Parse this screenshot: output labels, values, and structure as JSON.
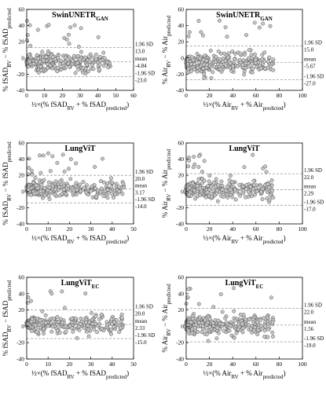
{
  "chart_data": [
    {
      "type": "scatter",
      "title": "SwinUNETR_GAN",
      "title_main": "SwinUNETR",
      "title_sub": "GAN",
      "ylabel": "% fSAD_RV − % fSAD_predicted",
      "xlabel": "½×(% fSAD_RV + % fSAD_predicted)",
      "xlim": [
        0,
        60
      ],
      "ylim": [
        -40,
        60
      ],
      "xticks": [
        0,
        10,
        20,
        30,
        40,
        50,
        60
      ],
      "yticks": [
        -40,
        -20,
        0,
        20,
        40,
        60
      ],
      "xtick_labels": [
        "0",
        "10",
        "20",
        "30",
        "40",
        "50",
        "60"
      ],
      "ytick_labels": [
        "-40",
        "-20",
        "0",
        "20",
        "40",
        "60"
      ],
      "grid": false,
      "lines": {
        "upper": 13.0,
        "mean": -4.84,
        "lower": -23.0
      },
      "line_labels": {
        "upper_name": "1.96 SD",
        "upper_value": "13.0",
        "mean_name": "mean",
        "mean_value": "-4.84",
        "lower_name": "-1.96 SD",
        "lower_value": "-23.0"
      },
      "n_points": 330,
      "x_max": 47
    },
    {
      "type": "scatter",
      "title": "SwinUNETR_GAN",
      "title_main": "SwinUNETR",
      "title_sub": "GAN",
      "ylabel": "% Air_RV − % Air_predicted",
      "xlabel": "½×(% Air_RV + % Air_predicted)",
      "xlim": [
        0,
        100
      ],
      "ylim": [
        -40,
        60
      ],
      "xticks": [
        0,
        20,
        40,
        60,
        80,
        100
      ],
      "yticks": [
        -40,
        -20,
        0,
        20,
        40,
        60
      ],
      "xtick_labels": [
        "0",
        "20",
        "40",
        "60",
        "80",
        "100"
      ],
      "ytick_labels": [
        "-40",
        "-20",
        "0",
        "20",
        "40",
        "60"
      ],
      "grid": false,
      "lines": {
        "upper": 15.0,
        "mean": -5.67,
        "lower": -27.0
      },
      "line_labels": {
        "upper_name": "1.96 SD",
        "upper_value": "15.0",
        "mean_name": "mean",
        "mean_value": "-5.67",
        "lower_name": "-1.96 SD",
        "lower_value": "-27.0"
      },
      "n_points": 330,
      "x_max": 75
    },
    {
      "type": "scatter",
      "title": "LungViT",
      "title_main": "LungViT",
      "title_sub": "",
      "ylabel": "% fSAD_RV − % fSAD_predicted",
      "xlabel": "½×(% fSAD_RV + % fSAD_predicted)",
      "xlim": [
        0,
        50
      ],
      "ylim": [
        -40,
        60
      ],
      "xticks": [
        0,
        10,
        20,
        30,
        40,
        50
      ],
      "yticks": [
        -40,
        -20,
        0,
        20,
        40,
        60
      ],
      "xtick_labels": [
        "0",
        "10",
        "20",
        "30",
        "40",
        "50"
      ],
      "ytick_labels": [
        "-40",
        "-20",
        "0",
        "20",
        "40",
        "60"
      ],
      "grid": false,
      "lines": {
        "upper": 20.0,
        "mean": 3.17,
        "lower": -14.0
      },
      "line_labels": {
        "upper_name": "1.96 SD",
        "upper_value": "20.0",
        "mean_name": "mean",
        "mean_value": "3.17",
        "lower_name": "-1.96 SD",
        "lower_value": "-14.0"
      },
      "n_points": 330,
      "x_max": 46
    },
    {
      "type": "scatter",
      "title": "LungViT",
      "title_main": "LungViT",
      "title_sub": "",
      "ylabel": "% Air_RV − % Air_predicted",
      "xlabel": "½×(% Air_RV + % Air_predicted)",
      "xlim": [
        0,
        100
      ],
      "ylim": [
        -40,
        60
      ],
      "xticks": [
        0,
        20,
        40,
        60,
        80,
        100
      ],
      "yticks": [
        -40,
        -20,
        0,
        20,
        40,
        60
      ],
      "xtick_labels": [
        "0",
        "20",
        "40",
        "60",
        "80",
        "100"
      ],
      "ytick_labels": [
        "-40",
        "-20",
        "0",
        "20",
        "40",
        "60"
      ],
      "grid": false,
      "lines": {
        "upper": 22.0,
        "mean": 2.29,
        "lower": -17.0
      },
      "line_labels": {
        "upper_name": "1.96 SD",
        "upper_value": "22.0",
        "mean_name": "mean",
        "mean_value": "2.29",
        "lower_name": "-1.96 SD",
        "lower_value": "-17.0"
      },
      "n_points": 330,
      "x_max": 75
    },
    {
      "type": "scatter",
      "title": "LungViT_EC",
      "title_main": "LungViT",
      "title_sub": "EC",
      "ylabel": "% fSAD_RV − fSAD_predicted",
      "xlabel": "½×(% fSAD_RV + % fSAD_predicted)",
      "xlim": [
        0,
        50
      ],
      "ylim": [
        -40,
        60
      ],
      "xticks": [
        0,
        10,
        20,
        30,
        40,
        50
      ],
      "yticks": [
        -40,
        -20,
        0,
        20,
        40,
        60
      ],
      "xtick_labels": [
        "0",
        "10",
        "20",
        "30",
        "40",
        "50"
      ],
      "ytick_labels": [
        "-40",
        "-20",
        "0",
        "20",
        "40",
        "60"
      ],
      "grid": false,
      "lines": {
        "upper": 20.0,
        "mean": 2.33,
        "lower": -15.0
      },
      "line_labels": {
        "upper_name": "1.96 SD",
        "upper_value": "20.0",
        "mean_name": "mean",
        "mean_value": "2.33",
        "lower_name": "-1.96 SD",
        "lower_value": "-15.0"
      },
      "n_points": 330,
      "x_max": 45
    },
    {
      "type": "scatter",
      "title": "LungViT_EC",
      "title_main": "LungViT",
      "title_sub": "EC",
      "ylabel": "% Air_RV − % Air_predicted",
      "xlabel": "½×(% Air_RV + % Air_predicted)",
      "xlim": [
        0,
        100
      ],
      "ylim": [
        -40,
        60
      ],
      "xticks": [
        0,
        20,
        40,
        60,
        80,
        100
      ],
      "yticks": [
        -40,
        -20,
        0,
        20,
        40,
        60
      ],
      "xtick_labels": [
        "0",
        "20",
        "40",
        "60",
        "80",
        "100"
      ],
      "ytick_labels": [
        "-40",
        "-20",
        "0",
        "20",
        "40",
        "60"
      ],
      "grid": false,
      "lines": {
        "upper": 22.0,
        "mean": 1.56,
        "lower": -19.0
      },
      "line_labels": {
        "upper_name": "1.96 SD",
        "upper_value": "22.0",
        "mean_name": "mean",
        "mean_value": "1.56",
        "lower_name": "-1.96 SD",
        "lower_value": "-19.0"
      },
      "n_points": 330,
      "x_max": 75
    }
  ]
}
